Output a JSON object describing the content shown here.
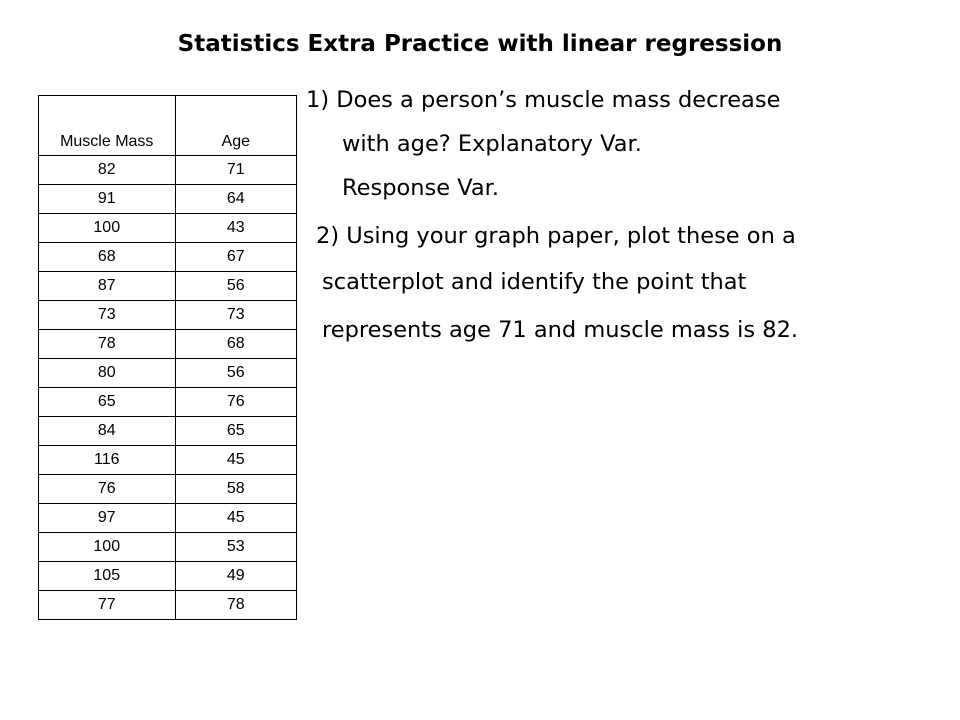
{
  "title": "Statistics Extra Practice with linear regression",
  "table": {
    "headers": {
      "muscle_mass": "Muscle Mass",
      "age": "Age"
    },
    "rows": [
      {
        "muscle_mass": "82",
        "age": "71"
      },
      {
        "muscle_mass": "91",
        "age": "64"
      },
      {
        "muscle_mass": "100",
        "age": "43"
      },
      {
        "muscle_mass": "68",
        "age": "67"
      },
      {
        "muscle_mass": "87",
        "age": "56"
      },
      {
        "muscle_mass": "73",
        "age": "73"
      },
      {
        "muscle_mass": "78",
        "age": "68"
      },
      {
        "muscle_mass": "80",
        "age": "56"
      },
      {
        "muscle_mass": "65",
        "age": "76"
      },
      {
        "muscle_mass": "84",
        "age": "65"
      },
      {
        "muscle_mass": "116",
        "age": "45"
      },
      {
        "muscle_mass": "76",
        "age": "58"
      },
      {
        "muscle_mass": "97",
        "age": "45"
      },
      {
        "muscle_mass": "100",
        "age": "53"
      },
      {
        "muscle_mass": "105",
        "age": "49"
      },
      {
        "muscle_mass": "77",
        "age": "78"
      }
    ]
  },
  "questions": {
    "q1_line1": "1) Does a person’s muscle mass decrease",
    "q1_line2": "with age?  Explanatory Var.",
    "q1_line3": "Response Var.",
    "q2_line1": "2) Using your graph paper, plot these on a",
    "q2_line2": "scatterplot and identify the point that",
    "q2_line3": "represents age 71 and muscle mass is 82."
  }
}
